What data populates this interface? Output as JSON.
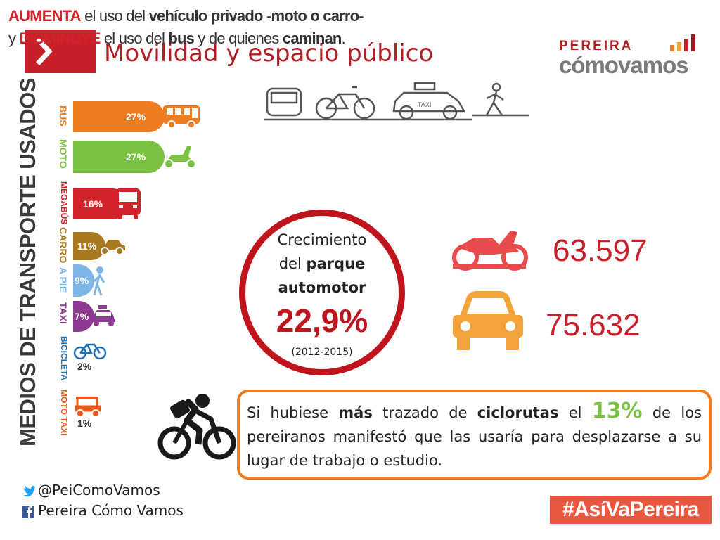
{
  "header": {
    "title": "Movilidad y espacio público"
  },
  "logo": {
    "top": "PEREIRA",
    "bottom_a": "cómo",
    "bottom_b": "vamos"
  },
  "side_title": "MEDIOS DE TRANSPORTE USADOS",
  "modes": [
    {
      "label": "BUS",
      "pct": "27%",
      "color": "#ee7d22"
    },
    {
      "label": "MOTO",
      "pct": "27%",
      "color": "#7cc242"
    },
    {
      "label": "MEGABÚS",
      "pct": "16%",
      "color": "#d2232a"
    },
    {
      "label": "CARRO",
      "pct": "11%",
      "color": "#a8791f"
    },
    {
      "label": "A PIE",
      "pct": "9%",
      "color": "#7db6e4"
    },
    {
      "label": "TAXI",
      "pct": "7%",
      "color": "#8e3a91"
    },
    {
      "label": "BICICLETA",
      "pct": "2%",
      "color": "#1f6fb3"
    },
    {
      "label": "MOTO TAXI",
      "pct": "1%",
      "color": "#e85a1a"
    }
  ],
  "top_callout": {
    "w1": "AUMENTA",
    "w2": " el uso del ",
    "w3": "vehículo privado",
    "w4": " -",
    "w5": "moto o carro",
    "w6": "-",
    "w7": "y ",
    "w8": "DISMINUYE",
    "w9": " el uso del ",
    "w10": "bus",
    "w11": " y de quienes ",
    "w12": "caminan",
    "w13": "."
  },
  "taxi_sign": "TAXI",
  "circle": {
    "line1": "Crecimiento",
    "line2a": "del ",
    "line2b": "parque",
    "line3": "automotor",
    "percent": "22,9%",
    "period": "(2012-2015)"
  },
  "stats": {
    "motos": "63.597",
    "cars": "75.632"
  },
  "bottom_callout": {
    "a": "Si hubiese ",
    "b": "más",
    "c": " trazado de ",
    "d": "ciclorutas",
    "e": " el ",
    "f": "13%",
    "g": " de los pereiranos manifestó que las usaría para desplazarse a su lugar de trabajo o estudio."
  },
  "social": {
    "twitter": "@PeiComoVamos",
    "facebook": "Pereira Cómo Vamos"
  },
  "hashtag": "#AsíVaPereira",
  "colors": {
    "brand_red": "#c8202a",
    "orange": "#ee7d22",
    "green": "#7cc242"
  },
  "icons": [
    "chevron-right-icon",
    "bus-icon",
    "scooter-icon",
    "megabus-icon",
    "car-icon",
    "pedestrian-icon",
    "taxi-icon",
    "bicycle-icon",
    "mototaxi-icon",
    "motorcycle-icon",
    "cyclist-icon",
    "twitter-icon",
    "facebook-icon",
    "bar-chart-icon"
  ]
}
